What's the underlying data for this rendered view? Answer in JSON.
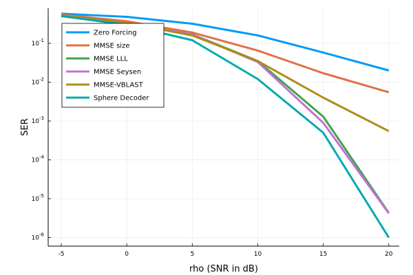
{
  "chart_data": {
    "type": "line",
    "title": "",
    "xlabel": "rho (SNR in dB)",
    "ylabel": "SER",
    "x": [
      -5,
      0,
      5,
      10,
      15,
      20
    ],
    "xlim": [
      -6,
      20.8
    ],
    "ylim": [
      6e-07,
      0.8
    ],
    "yscale": "log",
    "grid": true,
    "legend_position": "top-left",
    "x_ticks": [
      {
        "value": -5,
        "label": "-5"
      },
      {
        "value": 0,
        "label": "0"
      },
      {
        "value": 5,
        "label": "5"
      },
      {
        "value": 10,
        "label": "10"
      },
      {
        "value": 15,
        "label": "15"
      },
      {
        "value": 20,
        "label": "20"
      }
    ],
    "y_ticks": [
      {
        "value": 1e-06,
        "base": "10",
        "exp": "-6"
      },
      {
        "value": 1e-05,
        "base": "10",
        "exp": "-5"
      },
      {
        "value": 0.0001,
        "base": "10",
        "exp": "-4"
      },
      {
        "value": 0.001,
        "base": "10",
        "exp": "-3"
      },
      {
        "value": 0.01,
        "base": "10",
        "exp": "-2"
      },
      {
        "value": 0.1,
        "base": "10",
        "exp": "-1"
      }
    ],
    "series": [
      {
        "name": "Zero Forcing",
        "color": "#009af9",
        "values": [
          0.58,
          0.48,
          0.32,
          0.16,
          0.058,
          0.02
        ]
      },
      {
        "name": "MMSE size",
        "color": "#e26f46",
        "values": [
          0.55,
          0.37,
          0.19,
          0.065,
          0.017,
          0.0055
        ]
      },
      {
        "name": "MMSE LLL",
        "color": "#3da44d",
        "values": [
          0.53,
          0.33,
          0.17,
          0.035,
          0.0013,
          4.3e-06
        ]
      },
      {
        "name": "MMSE Seysen",
        "color": "#c271d2",
        "values": [
          0.53,
          0.33,
          0.17,
          0.033,
          0.0009,
          4.2e-06
        ]
      },
      {
        "name": "MMSE-VBLAST",
        "color": "#ac8d18",
        "values": [
          0.53,
          0.33,
          0.16,
          0.035,
          0.004,
          0.00055
        ]
      },
      {
        "name": "Sphere Decoder",
        "color": "#00a9ad",
        "values": [
          0.5,
          0.3,
          0.12,
          0.012,
          0.0005,
          1e-06
        ]
      }
    ]
  }
}
